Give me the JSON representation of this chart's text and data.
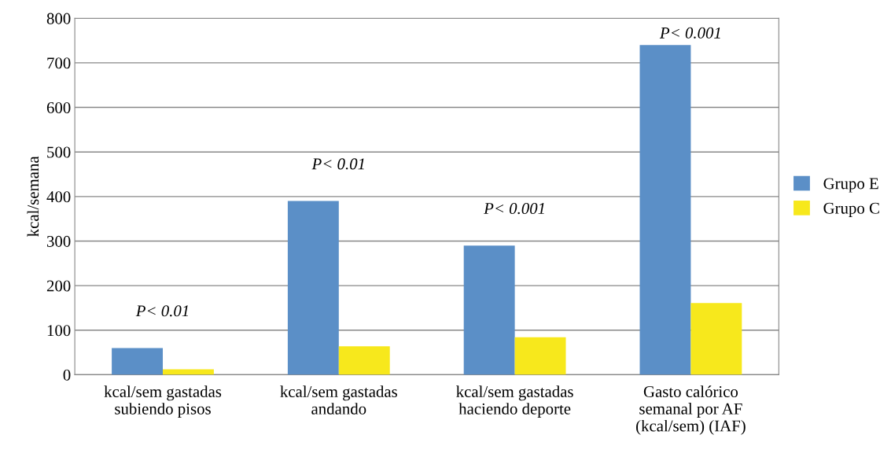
{
  "chart_data": {
    "type": "bar",
    "ylabel": "kcal/semana",
    "categories": [
      "kcal/sem gastadas\nsubiendo pisos",
      "kcal/sem gastadas\nandando",
      "kcal/sem gastadas\nhaciendo deporte",
      "Gasto calórico\nsemanal por AF\n(kcal/sem) (IAF)"
    ],
    "series": [
      {
        "name": "Grupo E",
        "color": "#5b8fc7",
        "values": [
          60,
          390,
          290,
          740
        ]
      },
      {
        "name": "Grupo C",
        "color": "#f7e81c",
        "values": [
          12,
          64,
          84,
          161
        ]
      }
    ],
    "ylim": [
      0,
      800
    ],
    "yticks": [
      0,
      100,
      200,
      300,
      400,
      500,
      600,
      700,
      800
    ],
    "grid": "y",
    "legend": "right",
    "annotations": [
      "P< 0.01",
      "P< 0.01",
      "P< 0.001",
      "P< 0.001"
    ]
  }
}
